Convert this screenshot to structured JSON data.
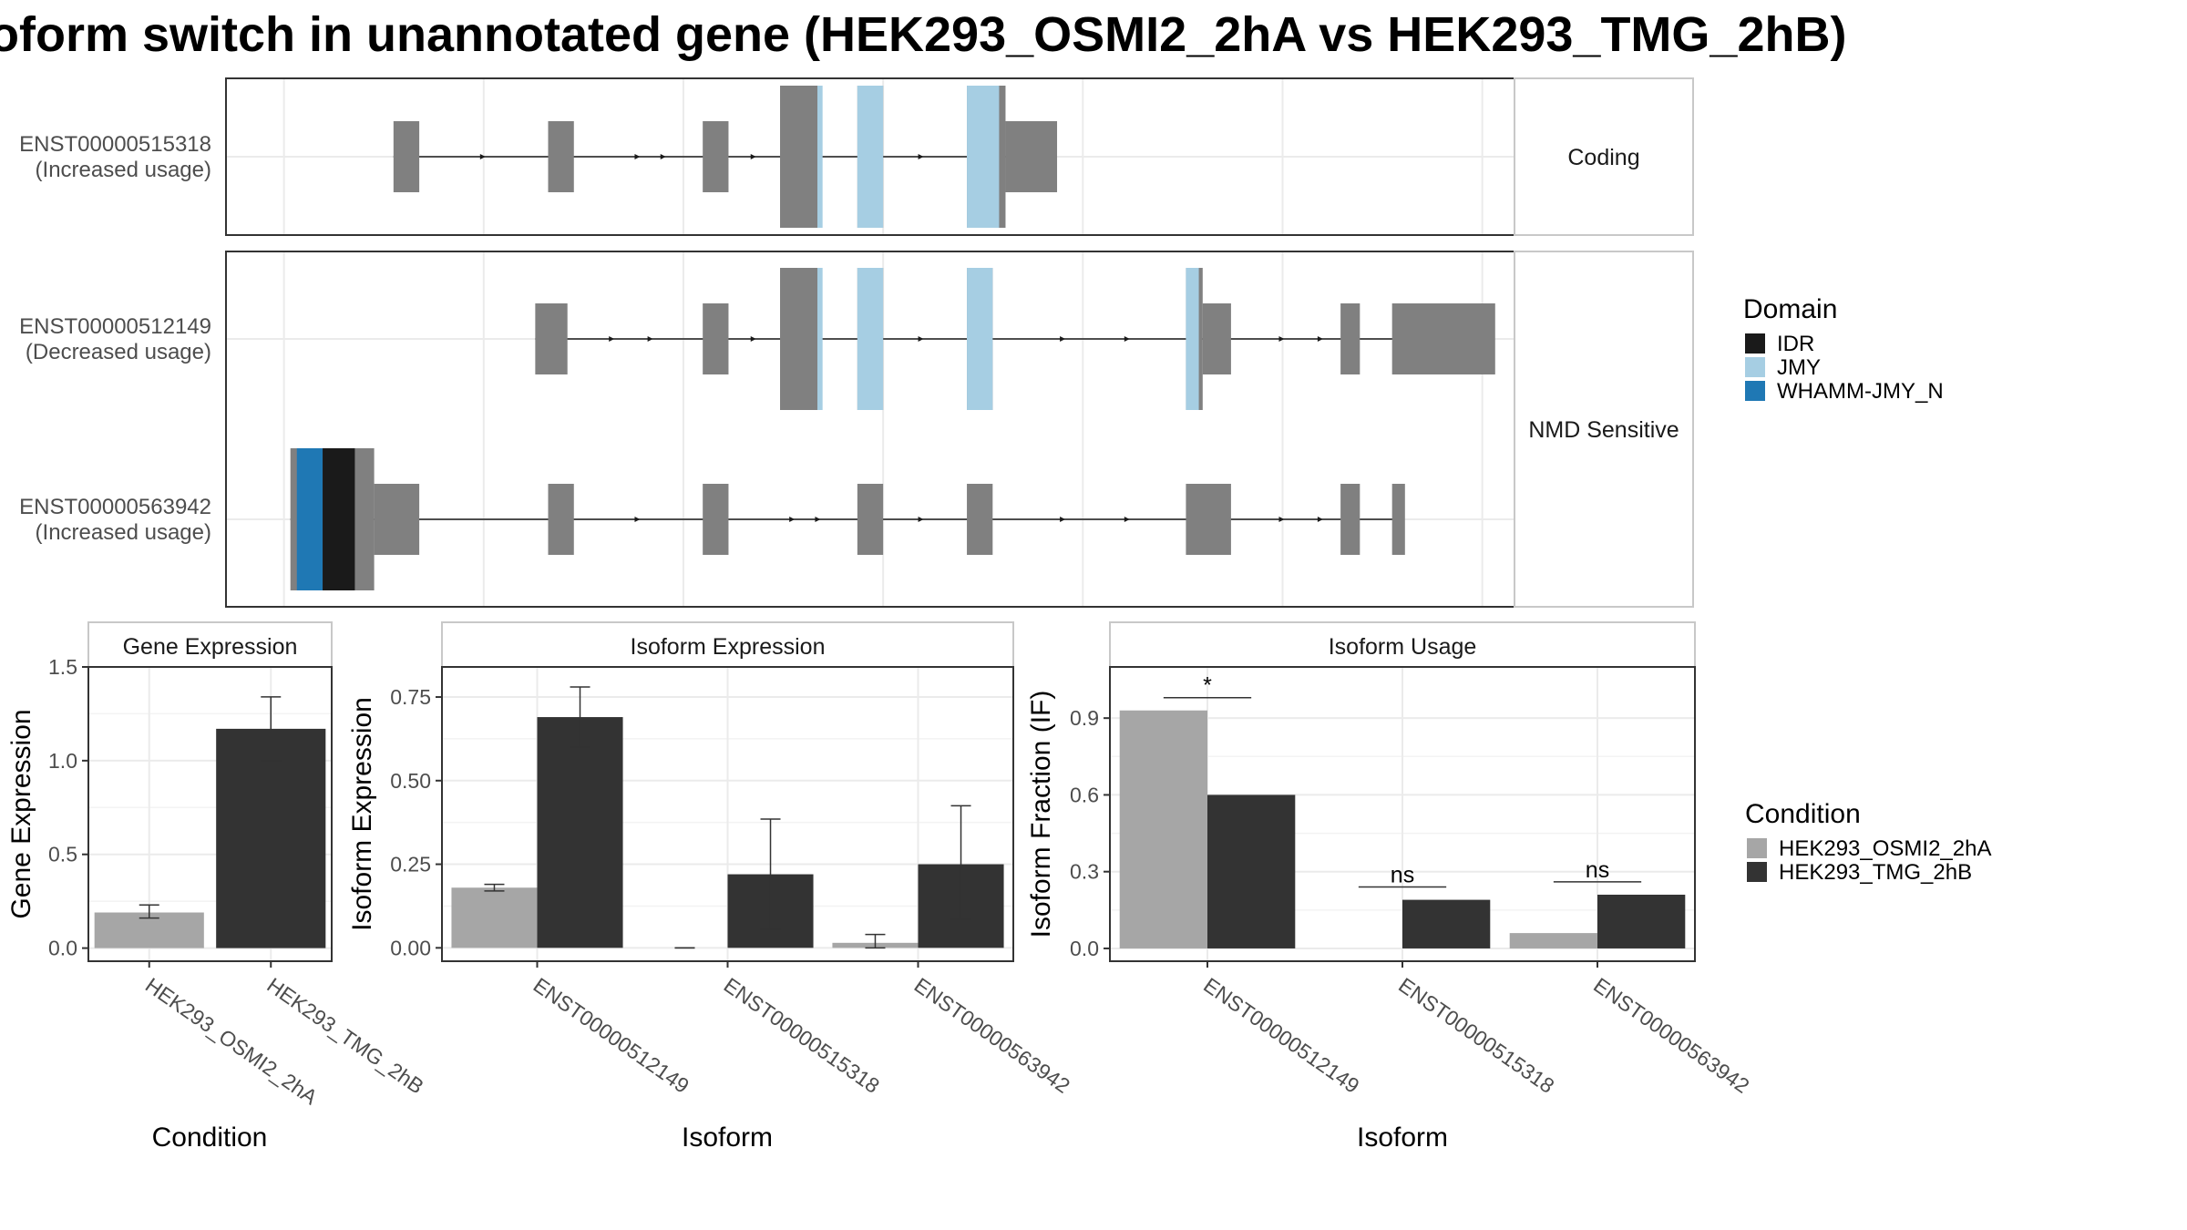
{
  "title": "oform switch in unannotated gene (HEK293_OSMI2_2hA vs HEK293_TMG_2hB)",
  "colors": {
    "exon": "#808080",
    "IDR": "#1a1a1a",
    "JMY": "#a6cee3",
    "WHAMM-JMY_N": "#1f78b4",
    "cond_a": "#a6a6a6",
    "cond_b": "#333333",
    "grid": "#ebebeb",
    "strip_border": "#c8c8c8"
  },
  "structure": {
    "facets": [
      {
        "label": "Coding",
        "transcripts": [
          {
            "id": "ENST00000515318",
            "usage": "(Increased usage)",
            "intron": [
              0.13,
              0.61
            ],
            "exons": [
              {
                "s": 0.13,
                "e": 0.15,
                "tall": false
              },
              {
                "s": 0.25,
                "e": 0.27,
                "tall": false
              },
              {
                "s": 0.37,
                "e": 0.39,
                "tall": false
              },
              {
                "s": 0.43,
                "e": 0.46,
                "tall": true
              },
              {
                "s": 0.49,
                "e": 0.51,
                "tall": true
              },
              {
                "s": 0.575,
                "e": 0.605,
                "tall": true
              },
              {
                "s": 0.605,
                "e": 0.645,
                "tall": false
              }
            ],
            "domains": [
              {
                "name": "JMY",
                "s": 0.459,
                "e": 0.463,
                "tall": true
              },
              {
                "name": "JMY",
                "s": 0.49,
                "e": 0.51,
                "tall": true
              },
              {
                "name": "JMY",
                "s": 0.575,
                "e": 0.6,
                "tall": true
              }
            ],
            "arrows": [
              0.2,
              0.32,
              0.34,
              0.41,
              0.54
            ]
          }
        ]
      },
      {
        "label": "NMD Sensitive",
        "transcripts": [
          {
            "id": "ENST00000512149",
            "usage": "(Decreased usage)",
            "intron": [
              0.24,
              0.98
            ],
            "exons": [
              {
                "s": 0.24,
                "e": 0.265,
                "tall": false
              },
              {
                "s": 0.37,
                "e": 0.39,
                "tall": false
              },
              {
                "s": 0.43,
                "e": 0.46,
                "tall": true
              },
              {
                "s": 0.49,
                "e": 0.51,
                "tall": true
              },
              {
                "s": 0.575,
                "e": 0.595,
                "tall": true
              },
              {
                "s": 0.745,
                "e": 0.758,
                "tall": true
              },
              {
                "s": 0.758,
                "e": 0.78,
                "tall": false
              },
              {
                "s": 0.865,
                "e": 0.88,
                "tall": false
              },
              {
                "s": 0.905,
                "e": 0.985,
                "tall": false
              }
            ],
            "domains": [
              {
                "name": "JMY",
                "s": 0.459,
                "e": 0.463,
                "tall": true
              },
              {
                "name": "JMY",
                "s": 0.49,
                "e": 0.51,
                "tall": true
              },
              {
                "name": "JMY",
                "s": 0.575,
                "e": 0.595,
                "tall": true
              },
              {
                "name": "JMY",
                "s": 0.745,
                "e": 0.755,
                "tall": true
              }
            ],
            "arrows": [
              0.3,
              0.33,
              0.41,
              0.54,
              0.65,
              0.7,
              0.82,
              0.85
            ]
          },
          {
            "id": "ENST00000563942",
            "usage": "(Increased usage)",
            "intron": [
              0.05,
              0.91
            ],
            "exons": [
              {
                "s": 0.05,
                "e": 0.115,
                "tall": true
              },
              {
                "s": 0.115,
                "e": 0.15,
                "tall": false
              },
              {
                "s": 0.25,
                "e": 0.27,
                "tall": false
              },
              {
                "s": 0.37,
                "e": 0.39,
                "tall": false
              },
              {
                "s": 0.49,
                "e": 0.51,
                "tall": false
              },
              {
                "s": 0.575,
                "e": 0.595,
                "tall": false
              },
              {
                "s": 0.745,
                "e": 0.78,
                "tall": false
              },
              {
                "s": 0.865,
                "e": 0.88,
                "tall": false
              },
              {
                "s": 0.905,
                "e": 0.915,
                "tall": false
              }
            ],
            "domains": [
              {
                "name": "WHAMM-JMY_N",
                "s": 0.055,
                "e": 0.075,
                "tall": true
              },
              {
                "name": "IDR",
                "s": 0.075,
                "e": 0.1,
                "tall": true
              }
            ],
            "arrows": [
              0.32,
              0.44,
              0.46,
              0.54,
              0.65,
              0.7,
              0.82,
              0.85
            ]
          }
        ]
      }
    ]
  },
  "legends": {
    "domain_title": "Domain",
    "domain_items": [
      "IDR",
      "JMY",
      "WHAMM-JMY_N"
    ],
    "condition_title": "Condition",
    "condition_items": [
      "HEK293_OSMI2_2hA",
      "HEK293_TMG_2hB"
    ]
  },
  "chart_data": [
    {
      "type": "bar",
      "title": "Gene Expression",
      "xlabel": "Condition",
      "ylabel": "Gene Expression",
      "ylim": [
        -0.07,
        1.5
      ],
      "yticks": [
        0.0,
        0.5,
        1.0,
        1.5
      ],
      "ytick_labels": [
        "0.0",
        "0.5",
        "1.0",
        "1.5"
      ],
      "categories": [
        "HEK293_OSMI2_2hA",
        "HEK293_TMG_2hB"
      ],
      "values": [
        0.19,
        1.17
      ],
      "errors": [
        [
          0.16,
          0.23
        ],
        [
          1.0,
          1.34
        ]
      ],
      "colors": [
        "#a6a6a6",
        "#333333"
      ]
    },
    {
      "type": "bar",
      "title": "Isoform Expression",
      "xlabel": "Isoform",
      "ylabel": "Isoform Expression",
      "ylim": [
        -0.04,
        0.84
      ],
      "yticks": [
        0.0,
        0.25,
        0.5,
        0.75
      ],
      "ytick_labels": [
        "0.00",
        "0.25",
        "0.50",
        "0.75"
      ],
      "categories": [
        "ENST00000512149",
        "ENST00000515318",
        "ENST00000563942"
      ],
      "series": [
        {
          "name": "HEK293_OSMI2_2hA",
          "values": [
            0.18,
            0.0,
            0.015
          ],
          "errors": [
            [
              0.17,
              0.19
            ],
            [
              0.0,
              0.0
            ],
            [
              0.0,
              0.04
            ]
          ]
        },
        {
          "name": "HEK293_TMG_2hB",
          "values": [
            0.69,
            0.22,
            0.25
          ],
          "errors": [
            [
              0.6,
              0.78
            ],
            [
              0.055,
              0.385
            ],
            [
              0.085,
              0.425
            ]
          ]
        }
      ]
    },
    {
      "type": "bar",
      "title": "Isoform Usage",
      "xlabel": "Isoform",
      "ylabel": "Isoform Fraction (IF)",
      "ylim": [
        -0.05,
        1.1
      ],
      "yticks": [
        0.0,
        0.3,
        0.6,
        0.9
      ],
      "ytick_labels": [
        "0.0",
        "0.3",
        "0.6",
        "0.9"
      ],
      "categories": [
        "ENST00000512149",
        "ENST00000515318",
        "ENST00000563942"
      ],
      "series": [
        {
          "name": "HEK293_OSMI2_2hA",
          "values": [
            0.93,
            0.0,
            0.06
          ]
        },
        {
          "name": "HEK293_TMG_2hB",
          "values": [
            0.6,
            0.19,
            0.21
          ]
        }
      ],
      "significance": [
        {
          "category": "ENST00000512149",
          "label": "*",
          "y": 0.98
        },
        {
          "category": "ENST00000515318",
          "label": "ns",
          "y": 0.24
        },
        {
          "category": "ENST00000563942",
          "label": "ns",
          "y": 0.26
        }
      ]
    }
  ]
}
